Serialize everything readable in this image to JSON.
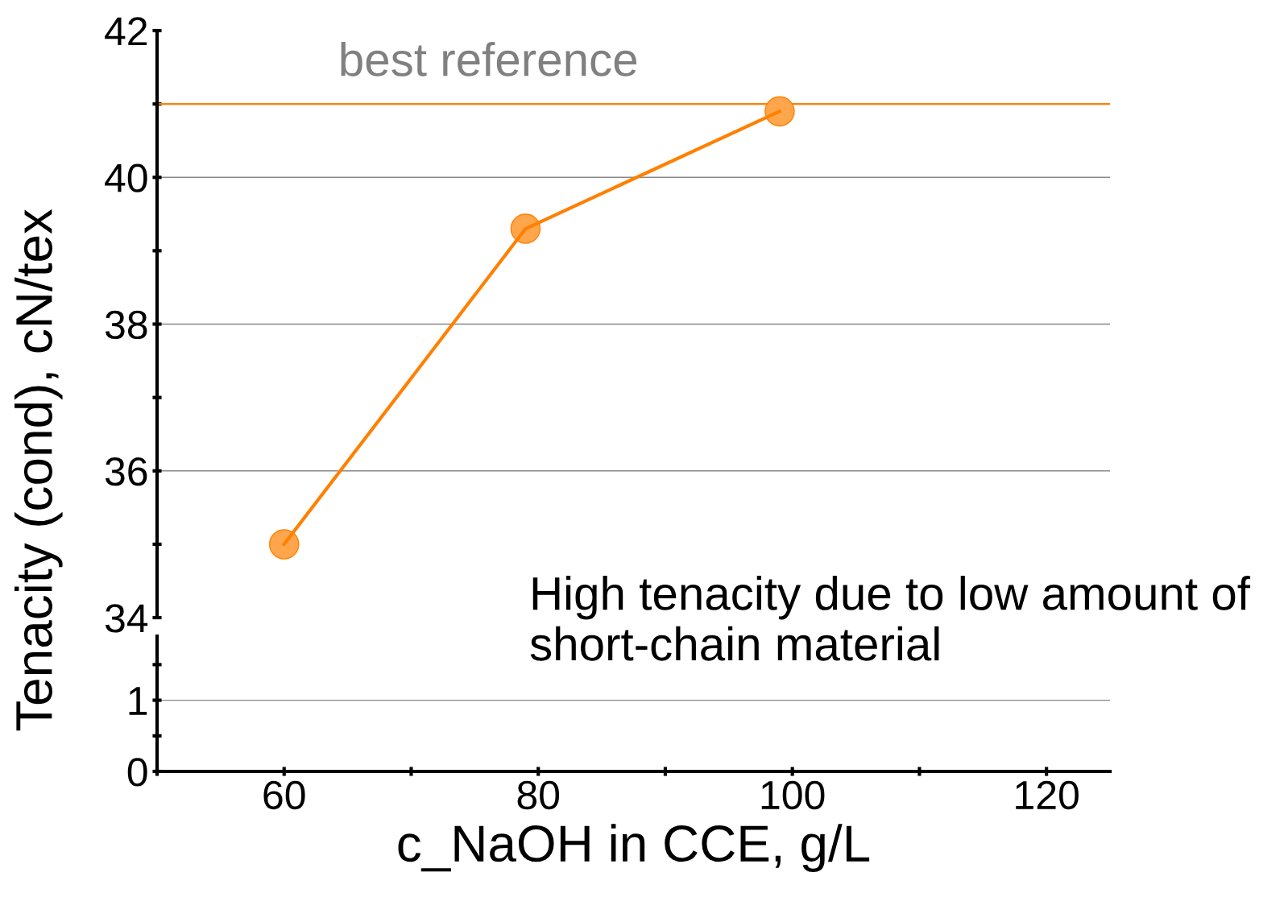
{
  "chart_data": [
    {
      "type": "line",
      "ylabel": "Tenacity (cond), cN/tex",
      "x": [
        60,
        79,
        99
      ],
      "series": [
        {
          "color": "#ff8000",
          "values": [
            35.0,
            39.3,
            40.9
          ]
        }
      ],
      "marker": "circle",
      "line_style": "solid",
      "xlim": [
        50,
        125
      ],
      "ylim": [
        34,
        42
      ],
      "yticks": [
        34,
        {
          "value": 35,
          "label": null
        },
        36,
        {
          "value": 37,
          "label": null
        },
        38,
        {
          "value": 39,
          "label": null
        },
        40,
        {
          "value": 41,
          "label": null
        },
        42
      ],
      "grid": "y",
      "tick_labels": "y",
      "ref_lines": [
        {
          "axis": "y",
          "value": 41,
          "label": "best reference",
          "color": "#ff8000"
        }
      ],
      "annotations": [
        "High tenacity due to low amount of short-chain material"
      ]
    },
    {
      "type": "line",
      "xlabel": "c_NaOH in CCE, g/L",
      "xlim": [
        50,
        125
      ],
      "xticks": [
        {
          "value": 50,
          "label": null
        },
        60,
        {
          "value": 70,
          "label": null
        },
        80,
        {
          "value": 90,
          "label": null
        },
        100,
        {
          "value": 110,
          "label": null
        },
        120
      ],
      "ylim": [
        0,
        1.9
      ],
      "yticks": [
        0,
        {
          "value": 0.5,
          "label": null
        },
        1,
        {
          "value": 1.5,
          "label": null
        }
      ],
      "grid": "y"
    }
  ]
}
